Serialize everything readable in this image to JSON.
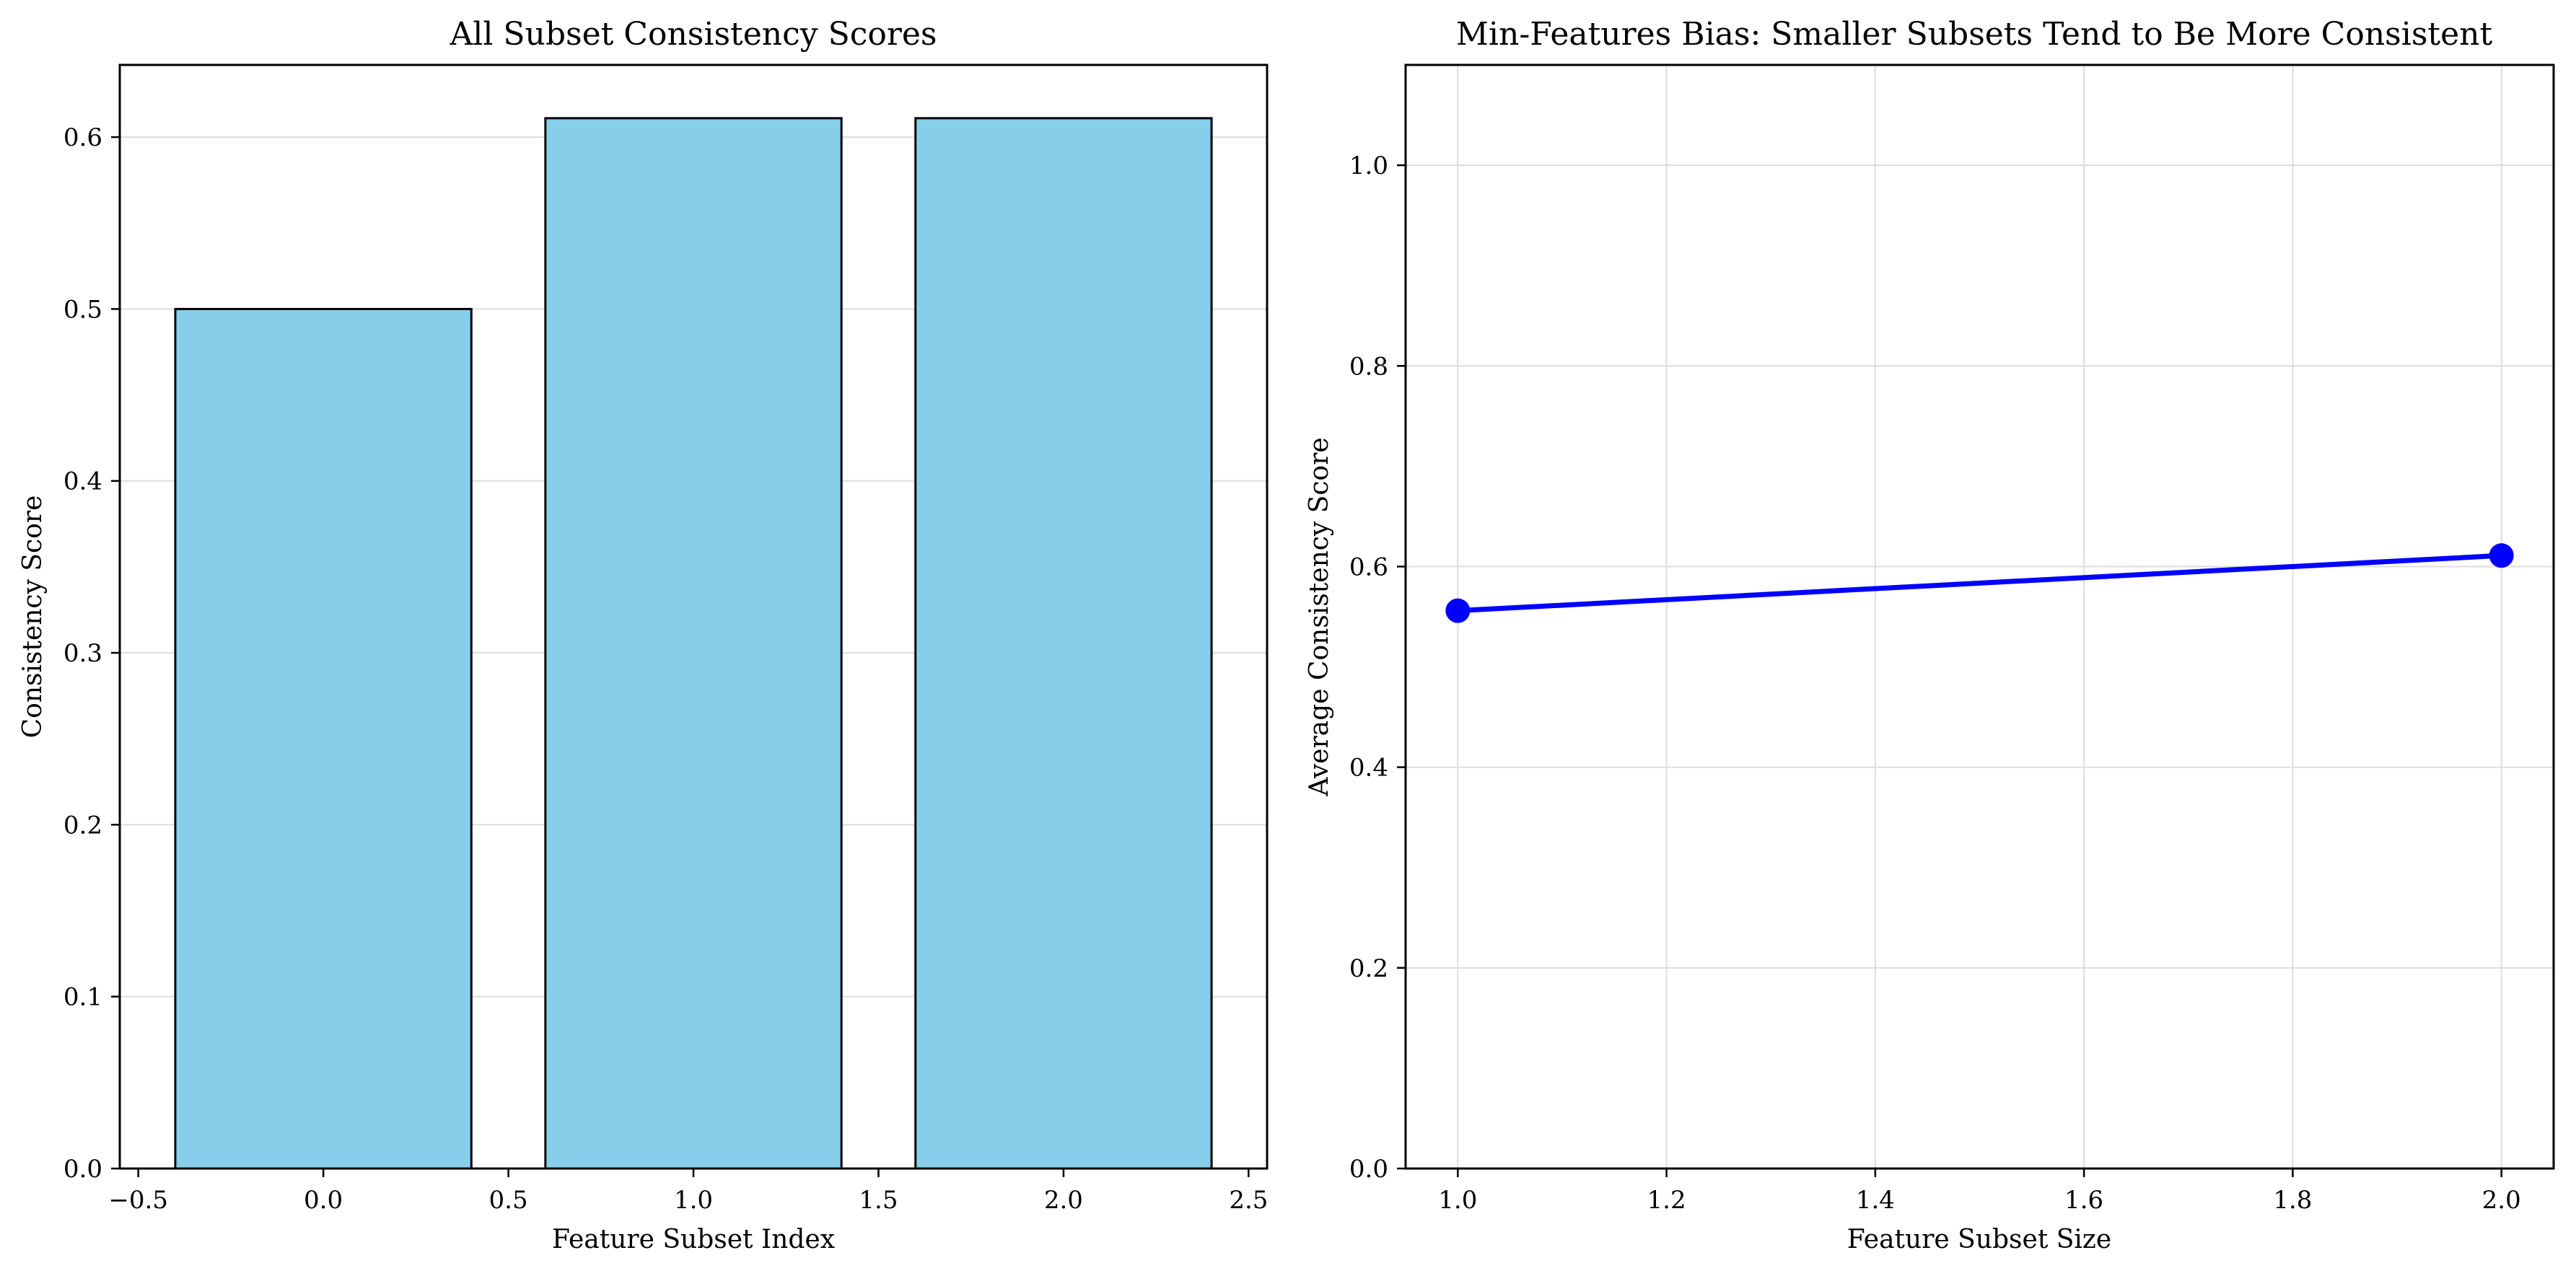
{
  "chart_data": [
    {
      "type": "bar",
      "title": "All Subset Consistency Scores",
      "xlabel": "Feature Subset Index",
      "ylabel": "Consistency Score",
      "x": [
        0,
        1,
        2
      ],
      "values": [
        0.5,
        0.611,
        0.611
      ],
      "xlim": [
        -0.55,
        2.55
      ],
      "ylim": [
        0,
        0.642
      ],
      "xticks": [
        -0.5,
        0.0,
        0.5,
        1.0,
        1.5,
        2.0,
        2.5
      ],
      "xtick_labels": [
        "−0.5",
        "0.0",
        "0.5",
        "1.0",
        "1.5",
        "2.0",
        "2.5"
      ],
      "yticks": [
        0.0,
        0.1,
        0.2,
        0.3,
        0.4,
        0.5,
        0.6
      ],
      "ytick_labels": [
        "0.0",
        "0.1",
        "0.2",
        "0.3",
        "0.4",
        "0.5",
        "0.6"
      ],
      "bar_width": 0.8,
      "bar_color": "#87ceeb",
      "edge_color": "#000000",
      "grid": "y-axis"
    },
    {
      "type": "line",
      "title": "Min-Features Bias: Smaller Subsets Tend to Be More Consistent",
      "xlabel": "Feature Subset Size",
      "ylabel": "Average Consistency Score",
      "x": [
        1.0,
        2.0
      ],
      "y": [
        0.556,
        0.611
      ],
      "xlim": [
        0.95,
        2.05
      ],
      "ylim": [
        0,
        1.1
      ],
      "xticks": [
        1.0,
        1.2,
        1.4,
        1.6,
        1.8,
        2.0
      ],
      "xtick_labels": [
        "1.0",
        "1.2",
        "1.4",
        "1.6",
        "1.8",
        "2.0"
      ],
      "yticks": [
        0.0,
        0.2,
        0.4,
        0.6,
        0.8,
        1.0
      ],
      "ytick_labels": [
        "0.0",
        "0.2",
        "0.4",
        "0.6",
        "0.8",
        "1.0"
      ],
      "line_color": "#0000ff",
      "marker": "circle",
      "grid": "both"
    }
  ]
}
